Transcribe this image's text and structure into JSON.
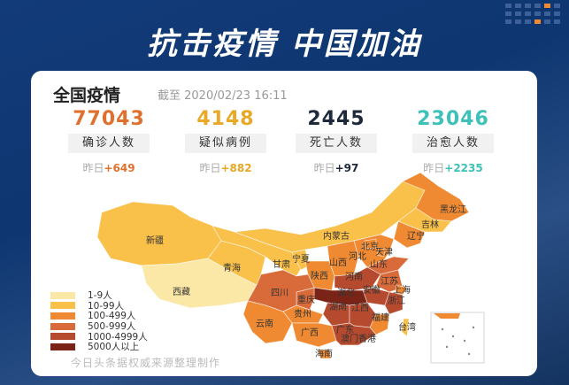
{
  "banner": {
    "title": "抗击疫情 中国加油"
  },
  "card": {
    "heading": "全国疫情",
    "timestamp": "截至 2020/02/23 16:11",
    "stats": [
      {
        "value": "77043",
        "label": "确诊人数",
        "yesterday_prefix": "昨日",
        "yesterday_delta": "+649",
        "color": "#e0702e"
      },
      {
        "value": "4148",
        "label": "疑似病例",
        "yesterday_prefix": "昨日",
        "yesterday_delta": "+882",
        "color": "#e9a825"
      },
      {
        "value": "2445",
        "label": "死亡人数",
        "yesterday_prefix": "昨日",
        "yesterday_delta": "+97",
        "color": "#1e2a3a"
      },
      {
        "value": "23046",
        "label": "治愈人数",
        "yesterday_prefix": "昨日",
        "yesterday_delta": "+2235",
        "color": "#3ec1b8"
      }
    ]
  },
  "map": {
    "legend": [
      {
        "label": "1-9人",
        "color": "#fbe8a6"
      },
      {
        "label": "10-99人",
        "color": "#f9c04a"
      },
      {
        "label": "100-499人",
        "color": "#f08a32"
      },
      {
        "label": "500-999人",
        "color": "#d96a3a"
      },
      {
        "label": "1000-4999人",
        "color": "#b54a2e"
      },
      {
        "label": "5000人以上",
        "color": "#7a2317"
      }
    ],
    "provinces": {
      "xinjiang": {
        "name": "新疆",
        "level": 1
      },
      "xizang": {
        "name": "西藏",
        "level": 0
      },
      "qinghai": {
        "name": "青海",
        "level": 1
      },
      "gansu": {
        "name": "甘肃",
        "level": 1
      },
      "ningxia": {
        "name": "宁夏",
        "level": 1
      },
      "neimenggu": {
        "name": "内蒙古",
        "level": 1
      },
      "heilongjiang": {
        "name": "黑龙江",
        "level": 2
      },
      "jilin": {
        "name": "吉林",
        "level": 1
      },
      "liaoning": {
        "name": "辽宁",
        "level": 2
      },
      "beijing": {
        "name": "北京",
        "level": 2
      },
      "tianjin": {
        "name": "天津",
        "level": 2
      },
      "hebei": {
        "name": "河北",
        "level": 2
      },
      "shanxi": {
        "name": "山西",
        "level": 2
      },
      "shandong": {
        "name": "山东",
        "level": 3
      },
      "shaanxi": {
        "name": "陕西",
        "level": 2
      },
      "henan": {
        "name": "河南",
        "level": 4
      },
      "jiangsu": {
        "name": "江苏",
        "level": 3
      },
      "anhui": {
        "name": "安徽",
        "level": 4
      },
      "shanghai": {
        "name": "上海",
        "level": 2
      },
      "hubei": {
        "name": "湖北",
        "level": 5
      },
      "sichuan": {
        "name": "四川",
        "level": 3
      },
      "chongqing": {
        "name": "重庆",
        "level": 3
      },
      "zhejiang": {
        "name": "浙江",
        "level": 4
      },
      "hunan": {
        "name": "湖南",
        "level": 4
      },
      "jiangxi": {
        "name": "江西",
        "level": 4
      },
      "guizhou": {
        "name": "贵州",
        "level": 2
      },
      "fujian": {
        "name": "福建",
        "level": 2
      },
      "yunnan": {
        "name": "云南",
        "level": 2
      },
      "guangxi": {
        "name": "广西",
        "level": 2
      },
      "guangdong": {
        "name": "广东",
        "level": 4
      },
      "taiwan": {
        "name": "台湾",
        "level": 1
      },
      "hainan": {
        "name": "海南",
        "level": 2
      },
      "aomen_xianggang": {
        "name": "澳门香港",
        "level": 2
      }
    },
    "source": "今日头条据权威来源整理制作"
  }
}
